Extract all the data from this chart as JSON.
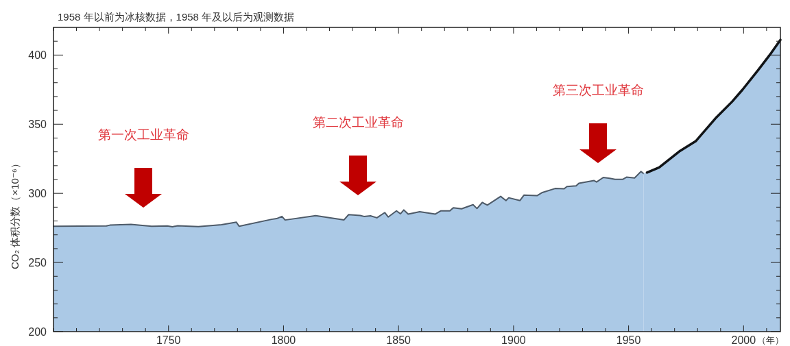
{
  "chart_data": {
    "type": "area",
    "title": "1958 年以前为冰核数据，1958 年及以后为观测数据",
    "xlabel": "（年）",
    "ylabel": "CO₂ 体积分数（×10⁻⁶）",
    "xlim": [
      1700,
      2016
    ],
    "ylim": [
      200,
      420
    ],
    "xticks": [
      {
        "value": 1700,
        "label": null
      },
      {
        "value": 1710,
        "label": null
      },
      {
        "value": 1720,
        "label": null
      },
      {
        "value": 1730,
        "label": null
      },
      {
        "value": 1740,
        "label": null
      },
      1750,
      {
        "value": 1760,
        "label": null
      },
      {
        "value": 1770,
        "label": null
      },
      {
        "value": 1780,
        "label": null
      },
      {
        "value": 1790,
        "label": null
      },
      1800,
      {
        "value": 1810,
        "label": null
      },
      {
        "value": 1820,
        "label": null
      },
      {
        "value": 1830,
        "label": null
      },
      {
        "value": 1840,
        "label": null
      },
      1850,
      {
        "value": 1860,
        "label": null
      },
      {
        "value": 1870,
        "label": null
      },
      {
        "value": 1880,
        "label": null
      },
      {
        "value": 1890,
        "label": null
      },
      1900,
      {
        "value": 1910,
        "label": null
      },
      {
        "value": 1920,
        "label": null
      },
      {
        "value": 1930,
        "label": null
      },
      {
        "value": 1940,
        "label": null
      },
      1950,
      {
        "value": 1960,
        "label": null
      },
      {
        "value": 1970,
        "label": null
      },
      {
        "value": 1980,
        "label": null
      },
      {
        "value": 1990,
        "label": null
      },
      2000,
      {
        "value": 2010,
        "label": null
      }
    ],
    "yticks": [
      200,
      {
        "value": 210,
        "label": null
      },
      {
        "value": 220,
        "label": null
      },
      {
        "value": 230,
        "label": null
      },
      {
        "value": 240,
        "label": null
      },
      250,
      {
        "value": 260,
        "label": null
      },
      {
        "value": 270,
        "label": null
      },
      {
        "value": 280,
        "label": null
      },
      {
        "value": 290,
        "label": null
      },
      300,
      {
        "value": 310,
        "label": null
      },
      {
        "value": 320,
        "label": null
      },
      {
        "value": 330,
        "label": null
      },
      {
        "value": 340,
        "label": null
      },
      350,
      {
        "value": 360,
        "label": null
      },
      {
        "value": 370,
        "label": null
      },
      {
        "value": 380,
        "label": null
      },
      {
        "value": 390,
        "label": null
      },
      400,
      {
        "value": 410,
        "label": null
      }
    ],
    "grid": false,
    "series": [
      {
        "color": "#abc9e6",
        "x": [
          1700,
          1723,
          1724.5,
          1733.7,
          1742.7,
          1749.5,
          1751.7,
          1754,
          1763,
          1773,
          1779.5,
          1780.7,
          1794.8,
          1797,
          1799.3,
          1800.7,
          1814,
          1826.3,
          1828.3,
          1833.3,
          1835,
          1837.8,
          1840.6,
          1844,
          1845.5,
          1849.1,
          1850.8,
          1852.3,
          1854.2,
          1859.2,
          1866,
          1868.3,
          1872.3,
          1873.8,
          1877.4,
          1882.4,
          1884.1,
          1886.4,
          1888.6,
          1894.4,
          1896.7,
          1897.9,
          1902.8,
          1904.5,
          1910.2,
          1912.5,
          1918.1,
          1922,
          1923.2,
          1927.2,
          1928.4,
          1935,
          1936.1,
          1939,
          1941.8,
          1944.1,
          1947.4,
          1949.1,
          1952.6,
          1955.4,
          1956.5
        ],
        "values": [
          276.2,
          276.4,
          277,
          277.6,
          276.2,
          276.4,
          275.8,
          276.6,
          275.9,
          277.3,
          279.1,
          276.2,
          281.2,
          281.7,
          283.3,
          280.7,
          283.9,
          280.8,
          284.6,
          284,
          283.3,
          283.7,
          282.3,
          286.1,
          282.9,
          287.3,
          285.2,
          288,
          285,
          286.7,
          285,
          287.3,
          287.3,
          289.6,
          288.8,
          291.8,
          289,
          293.4,
          291.5,
          297.8,
          294.8,
          296.8,
          294.8,
          298.7,
          298.3,
          300.6,
          303.5,
          303.3,
          304.9,
          305.4,
          307.3,
          309.2,
          308.2,
          311.5,
          310.9,
          310.1,
          310.1,
          311.7,
          311.1,
          315.8,
          314.3
        ]
      },
      {
        "color": "#abc9e6",
        "x": [
          1958,
          1963.3,
          1972.4,
          1979.2,
          1988.2,
          1995,
          1999.5,
          2006.3,
          2012,
          2016
        ],
        "values": [
          315,
          318.7,
          330.7,
          337.7,
          355,
          366.3,
          374.9,
          389.1,
          401.5,
          411
        ]
      }
    ],
    "annotations": [
      "第一次工业革命",
      "第二次工业革命",
      "第三次工业革命"
    ]
  }
}
